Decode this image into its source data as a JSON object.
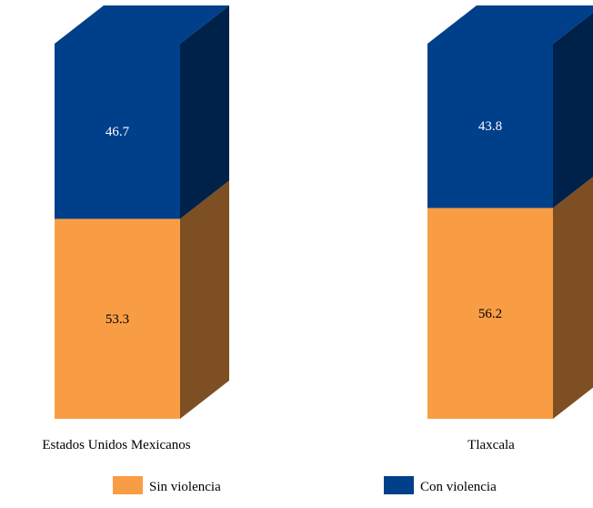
{
  "chart_data": {
    "type": "bar",
    "stacked": true,
    "three_d": true,
    "categories": [
      "Estados Unidos Mexicanos",
      "Tlaxcala"
    ],
    "series": [
      {
        "name": "Sin violencia",
        "values": [
          53.3,
          56.2
        ],
        "value_labels": [
          "53.3",
          "56.2"
        ],
        "color": "#F99D45",
        "side_color": "#7D4F22",
        "label_color": "#000000"
      },
      {
        "name": "Con violencia",
        "values": [
          46.7,
          43.8
        ],
        "value_labels": [
          "46.7",
          "43.8"
        ],
        "color": "#003F8A",
        "side_color": "#00214A",
        "label_color": "#ffffff"
      }
    ],
    "ylim": [
      0,
      100
    ],
    "grid": false,
    "legend_position": "bottom"
  }
}
